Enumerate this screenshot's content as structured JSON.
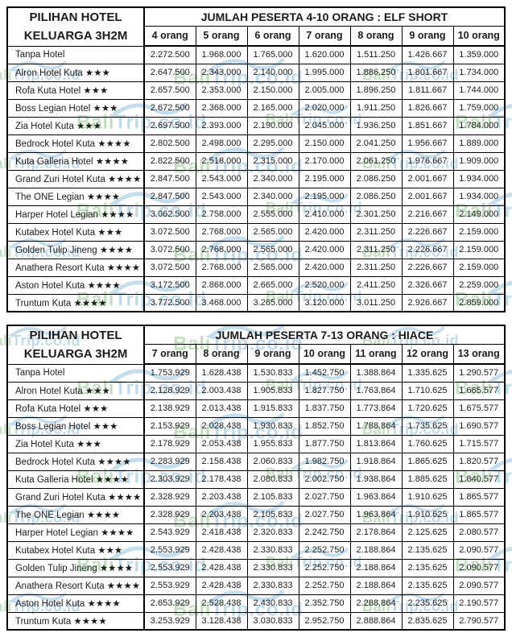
{
  "watermark": {
    "brand_green": "Bali",
    "brand_blue": "Trip.co.id",
    "green_color": "#b7dbb2",
    "blue_color": "#b3d5e8",
    "swoosh_color": "#bcd9ec"
  },
  "tables": [
    {
      "corner_title_line1": "PILIHAN HOTEL",
      "corner_title_line2": "KELUARGA 3H2M",
      "header_title": "JUMLAH PESERTA 4-10 ORANG : ELF SHORT",
      "columns": [
        "4 orang",
        "5 orang",
        "6 orang",
        "7 orang",
        "8 orang",
        "9 orang",
        "10 orang"
      ],
      "rows": [
        {
          "hotel": "Tanpa Hotel",
          "prices": [
            "2.272.500",
            "1.968.000",
            "1.765.000",
            "1.620.000",
            "1.511.250",
            "1.426.667",
            "1.359.000"
          ]
        },
        {
          "hotel": "Alron Hotel Kuta ★★★",
          "prices": [
            "2.647.500",
            "2.343.000",
            "2.140.000",
            "1.995.000",
            "1.886.250",
            "1.801.667",
            "1.734.000"
          ]
        },
        {
          "hotel": "Rofa Kuta Hotel ★★★",
          "prices": [
            "2.657.500",
            "2.353.000",
            "2.150.000",
            "2.005.000",
            "1.896.250",
            "1.811.667",
            "1.744.000"
          ]
        },
        {
          "hotel": "Boss Legian Hotel ★★★",
          "prices": [
            "2.672.500",
            "2.368.000",
            "2.165.000",
            "2.020.000",
            "1.911.250",
            "1.826.667",
            "1.759.000"
          ]
        },
        {
          "hotel": "Zia Hotel Kuta ★★★",
          "prices": [
            "2.697.500",
            "2.393.000",
            "2.190.000",
            "2.045.000",
            "1.936.250",
            "1.851.667",
            "1.784.000"
          ]
        },
        {
          "hotel": "Bedrock Hotel Kuta ★★★★",
          "prices": [
            "2.802.500",
            "2.498.000",
            "2.295.000",
            "2.150.000",
            "2.041.250",
            "1.956.667",
            "1.889.000"
          ]
        },
        {
          "hotel": "Kuta Galleria Hotel ★★★★",
          "prices": [
            "2.822.500",
            "2.518.000",
            "2.315.000",
            "2.170.000",
            "2.061.250",
            "1.976.667",
            "1.909.000"
          ]
        },
        {
          "hotel": "Grand Zuri Hotel Kuta ★★★★",
          "prices": [
            "2.847.500",
            "2.543.000",
            "2.340.000",
            "2.195.000",
            "2.086.250",
            "2.001.667",
            "1.934.000"
          ]
        },
        {
          "hotel": "The ONE Legian ★★★★",
          "prices": [
            "2.847.500",
            "2.543.000",
            "2.340.000",
            "2.195.000",
            "2.086.250",
            "2.001.667",
            "1.934.000"
          ]
        },
        {
          "hotel": "Harper Hotel Legian ★★★★",
          "prices": [
            "3.062.500",
            "2.758.000",
            "2.555.000",
            "2.410.000",
            "2.301.250",
            "2.216.667",
            "2.149.000"
          ]
        },
        {
          "hotel": "Kutabex Hotel Kuta ★★★",
          "prices": [
            "3.072.500",
            "2.768.000",
            "2.565.000",
            "2.420.000",
            "2.311.250",
            "2.226.667",
            "2.159.000"
          ]
        },
        {
          "hotel": "Golden Tulip Jineng ★★★★",
          "prices": [
            "3.072.500",
            "2.768.000",
            "2.565.000",
            "2.420.000",
            "2.311.250",
            "2.226.667",
            "2.159.000"
          ]
        },
        {
          "hotel": "Anathera Resort Kuta ★★★★",
          "prices": [
            "3.072.500",
            "2.768.000",
            "2.565.000",
            "2.420.000",
            "2.311.250",
            "2.226.667",
            "2.159.000"
          ]
        },
        {
          "hotel": "Aston Hotel Kuta ★★★★",
          "prices": [
            "3.172.500",
            "2.868.000",
            "2.665.000",
            "2.520.000",
            "2.411.250",
            "2.326.667",
            "2.259.000"
          ]
        },
        {
          "hotel": "Truntum Kuta ★★★★",
          "prices": [
            "3.772.500",
            "3.468.000",
            "3.265.000",
            "3.120.000",
            "3.011.250",
            "2.926.667",
            "2.859.000"
          ]
        }
      ]
    },
    {
      "corner_title_line1": "PILIHAN HOTEL",
      "corner_title_line2": "KELUARGA 3H2M",
      "header_title": "JUMLAH PESERTA 7-13 ORANG : HIACE",
      "columns": [
        "7 orang",
        "8 orang",
        "9 orang",
        "10 orang",
        "11 orang",
        "12 orang",
        "13 orang"
      ],
      "rows": [
        {
          "hotel": "Tanpa Hotel",
          "prices": [
            "1.753.929",
            "1.628.438",
            "1.530.833",
            "1.452.750",
            "1.388.864",
            "1.335.625",
            "1.290.577"
          ]
        },
        {
          "hotel": "Alron Hotel Kuta ★★★",
          "prices": [
            "2.128.929",
            "2.003.438",
            "1.905.833",
            "1.827.750",
            "1.763.864",
            "1.710.625",
            "1.665.577"
          ]
        },
        {
          "hotel": "Rofa Kuta Hotel ★★★",
          "prices": [
            "2.138.929",
            "2.013.438",
            "1.915.833",
            "1.837.750",
            "1.773.864",
            "1.720.625",
            "1.675.577"
          ]
        },
        {
          "hotel": "Boss Legian Hotel ★★★",
          "prices": [
            "2.153.929",
            "2.028.438",
            "1.930.833",
            "1.852.750",
            "1.788.864",
            "1.735.625",
            "1.690.577"
          ]
        },
        {
          "hotel": "Zia Hotel Kuta ★★★",
          "prices": [
            "2.178.929",
            "2.053.438",
            "1.955.833",
            "1.877.750",
            "1.813.864",
            "1.760.625",
            "1.715.577"
          ]
        },
        {
          "hotel": "Bedrock Hotel Kuta ★★★★",
          "prices": [
            "2.283.929",
            "2.158.438",
            "2.060.833",
            "1.982.750",
            "1.918.864",
            "1.865.625",
            "1.820.577"
          ]
        },
        {
          "hotel": "Kuta Galleria Hotel ★★★★",
          "prices": [
            "2.303.929",
            "2.178.438",
            "2.080.833",
            "2.002.750",
            "1.938.864",
            "1.885.625",
            "1.840.577"
          ]
        },
        {
          "hotel": "Grand Zuri Hotel Kuta ★★★★",
          "prices": [
            "2.328.929",
            "2.203.438",
            "2.105.833",
            "2.027.750",
            "1.963.864",
            "1.910.625",
            "1.865.577"
          ]
        },
        {
          "hotel": "The ONE Legian ★★★★",
          "prices": [
            "2.328.929",
            "2.203.438",
            "2.105.833",
            "2.027.750",
            "1.963.864",
            "1.910.625",
            "1.865.577"
          ]
        },
        {
          "hotel": "Harper Hotel Legian ★★★★",
          "prices": [
            "2.543.929",
            "2.418.438",
            "2.320.833",
            "2.242.750",
            "2.178.864",
            "2.125.625",
            "2.080.577"
          ]
        },
        {
          "hotel": "Kutabex Hotel Kuta ★★★",
          "prices": [
            "2.553.929",
            "2.428.438",
            "2.330.833",
            "2.252.750",
            "2.188.864",
            "2.135.625",
            "2.090.577"
          ]
        },
        {
          "hotel": "Golden Tulip Jineng ★★★★",
          "prices": [
            "2.553.929",
            "2.428.438",
            "2.330.833",
            "2.252.750",
            "2.188.864",
            "2.135.625",
            "2.090.577"
          ]
        },
        {
          "hotel": "Anathera Resort Kuta ★★★★",
          "prices": [
            "2.553.929",
            "2.428.438",
            "2.330.833",
            "2.252.750",
            "2.188.864",
            "2.135.625",
            "2.090.577"
          ]
        },
        {
          "hotel": "Aston Hotel Kuta ★★★★",
          "prices": [
            "2.653.929",
            "2.528.438",
            "2.430.833",
            "2.352.750",
            "2.288.864",
            "2.235.625",
            "2.190.577"
          ]
        },
        {
          "hotel": "Truntum Kuta ★★★★",
          "prices": [
            "3.253.929",
            "3.128.438",
            "3.030.833",
            "2.952.750",
            "2.888.864",
            "2.835.625",
            "2.790.577"
          ]
        }
      ]
    }
  ]
}
